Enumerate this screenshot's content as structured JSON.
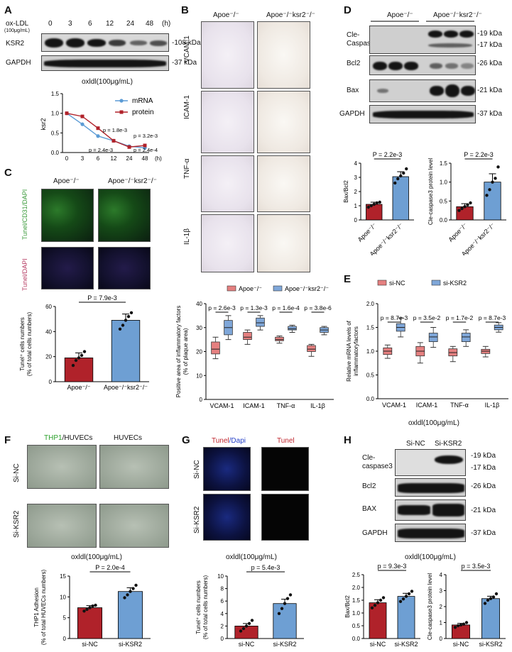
{
  "panels": {
    "A": {
      "label": "A",
      "row_label": "ox-LDL",
      "row_unit": "(100μg/mL)",
      "timepoints": [
        "0",
        "3",
        "6",
        "12",
        "24",
        "48"
      ],
      "time_unit": "(h)",
      "blots": [
        "KSR2",
        "GAPDH"
      ],
      "kda": [
        "-108 kDa",
        "-37 kDa"
      ],
      "chart_title": "oxldl(100μg/mL)"
    },
    "B": {
      "label": "B",
      "groups": [
        "Apoe⁻/⁻",
        "Apoe⁻/⁻ksr2⁻/⁻"
      ],
      "markers": [
        "VCAM-1",
        "ICAM-1",
        "TNF-α",
        "IL-1β"
      ]
    },
    "C": {
      "label": "C",
      "groups": [
        "Apoe⁻/⁻",
        "Apoe⁻/⁻ksr2⁻/⁻"
      ],
      "row1": "Tunel/CD31/DAPI",
      "row2": "Tunel/DAPI"
    },
    "D": {
      "label": "D",
      "groups": [
        "Apoe⁻/⁻",
        "Apoe⁻/⁻ksr2⁻/⁻"
      ],
      "blots": [
        "Cle-\nCaspase3",
        "Bcl2",
        "Bax",
        "GAPDH"
      ],
      "kda": [
        "-19 kDa",
        "-17 kDa",
        "-26 kDa",
        "-21 kDa",
        "-37 kDa"
      ]
    },
    "E": {
      "label": "E",
      "footer": "oxldl(100μg/mL)"
    },
    "F": {
      "label": "F",
      "cols": [
        "THP1/HUVECs",
        "HUVECs"
      ],
      "col1_green": "THP1",
      "col1_rest": "/HUVECs",
      "rows": [
        "Si-NC",
        "Si-KSR2"
      ],
      "footer": "oxldl(100μg/mL)"
    },
    "G": {
      "label": "G",
      "cols_red": "Tunel",
      "cols_blue": "/Dapi",
      "col2": "Tunel",
      "rows": [
        "Si-NC",
        "Si-KSR2"
      ],
      "footer": "oxldl(100μg/mL)"
    },
    "H": {
      "label": "H",
      "cols": [
        "Si-NC",
        "Si-KSR2"
      ],
      "blots": [
        "Cle-\ncaspase3",
        "Bcl2",
        "BAX",
        "GAPDH"
      ],
      "kda": [
        "-19 kDa",
        "-17 kDa",
        "-26 kDa",
        "-21 kDa",
        "-37 kDa"
      ],
      "footer": "oxldl(100μg/mL)"
    }
  },
  "colors": {
    "red": "#b0222a",
    "blue": "#6e9fd3",
    "boxRed": "#e58080",
    "boxBlue": "#7fa7d9",
    "lineBlue": "#5b9bd5"
  },
  "chart_data": [
    {
      "id": "A-line",
      "type": "line",
      "x": [
        "0",
        "3",
        "6",
        "12",
        "24",
        "48"
      ],
      "xunit": "(h)",
      "ylabel": "ksr2",
      "ylim": [
        0.0,
        1.5
      ],
      "yticks": [
        "0.0",
        "0.5",
        "1.0",
        "1.5"
      ],
      "legend": "top-right",
      "series": [
        {
          "name": "mRNA",
          "values": [
            1.0,
            0.72,
            0.42,
            0.3,
            0.16,
            0.12
          ]
        },
        {
          "name": "protein",
          "values": [
            1.0,
            0.92,
            0.62,
            0.3,
            0.14,
            0.18
          ]
        }
      ],
      "annotations": [
        "p = 1.8e-3",
        "p = 3.2e-3",
        "p = 2.4e-3",
        "p = 2.4e-4"
      ]
    },
    {
      "id": "C-bar",
      "type": "bar",
      "categories": [
        "Apoe⁻/⁻",
        "Apoe⁻/⁻ksr2⁻/⁻"
      ],
      "values": [
        19,
        49
      ],
      "errors": [
        4,
        5
      ],
      "points": [
        [
          13,
          17,
          19,
          21,
          24
        ],
        [
          42,
          45,
          49,
          52,
          55
        ]
      ],
      "ylabel": "Tunel⁺ cells numbers\n(% of total cells numbers)",
      "ylim": [
        0,
        60
      ],
      "yticks": [
        "0",
        "20",
        "40",
        "60"
      ],
      "annotation": "P = 7.9e-3"
    },
    {
      "id": "D-bar1",
      "type": "bar",
      "categories": [
        "Apoe⁻/⁻",
        "Apoe⁻/⁻ksr2⁻/⁻"
      ],
      "values": [
        1.1,
        3.05
      ],
      "errors": [
        0.15,
        0.35
      ],
      "points": [
        [
          0.9,
          1.0,
          1.1,
          1.2,
          1.25
        ],
        [
          2.6,
          2.9,
          3.1,
          3.3,
          3.6
        ]
      ],
      "ylabel": "Bax/Bcl2",
      "ylim": [
        0,
        4
      ],
      "yticks": [
        "0",
        "1",
        "2",
        "3",
        "4"
      ],
      "annotation": "P = 2.2e-3"
    },
    {
      "id": "D-bar2",
      "type": "bar",
      "categories": [
        "Apoe⁻/⁻",
        "Apoe⁻/⁻ksr2⁻/⁻"
      ],
      "values": [
        0.35,
        1.0
      ],
      "errors": [
        0.08,
        0.22
      ],
      "points": [
        [
          0.25,
          0.3,
          0.35,
          0.4,
          0.45
        ],
        [
          0.65,
          0.8,
          1.0,
          1.1,
          1.4
        ]
      ],
      "ylabel": "Cle-caspase3 protein level",
      "ylim": [
        0,
        1.5
      ],
      "yticks": [
        "0.0",
        "0.5",
        "1.0",
        "1.5"
      ],
      "annotation": "P = 2.2e-3"
    },
    {
      "id": "B-box",
      "type": "box",
      "categories": [
        "VCAM-1",
        "ICAM-1",
        "TNF-α",
        "IL-1β"
      ],
      "ylabel": "Positive area of inflammatory factors\n(% of plaque area)",
      "ylim": [
        0,
        40
      ],
      "yticks": [
        "0",
        "10",
        "20",
        "30",
        "40"
      ],
      "legend": "top",
      "series": [
        {
          "name": "Apoe⁻/⁻",
          "boxes": [
            [
              17,
              19,
              21,
              24,
              26
            ],
            [
              23,
              25,
              26,
              28,
              29
            ],
            [
              23.5,
              24.5,
              25,
              26,
              26.5
            ],
            [
              18,
              20,
              21,
              22.5,
              23
            ]
          ]
        },
        {
          "name": "Apoe⁻/⁻ksr2⁻/⁻",
          "boxes": [
            [
              25,
              27,
              30,
              33,
              35
            ],
            [
              29,
              30.5,
              32,
              34,
              35
            ],
            [
              28,
              29,
              29.5,
              30.5,
              31
            ],
            [
              27,
              28,
              29,
              30,
              30.5
            ]
          ]
        }
      ],
      "annotations": [
        "p = 2.6e-3",
        "p = 1.3e-3",
        "p = 1.6e-4",
        "p = 3.8e-6"
      ]
    },
    {
      "id": "E-box",
      "type": "box",
      "categories": [
        "VCAM-1",
        "ICAM-1",
        "TNF-α",
        "IL-1β"
      ],
      "ylabel": "Relative mRNA levels of\ninflammatoryfactors",
      "ylim": [
        0.0,
        2.0
      ],
      "yticks": [
        "0.0",
        "0.5",
        "1.0",
        "1.5",
        "2.0"
      ],
      "legend": "top",
      "series": [
        {
          "name": "si-NC",
          "boxes": [
            [
              0.85,
              0.93,
              1.0,
              1.07,
              1.13
            ],
            [
              0.75,
              0.9,
              1.0,
              1.1,
              1.18
            ],
            [
              0.78,
              0.9,
              0.97,
              1.05,
              1.1
            ],
            [
              0.88,
              0.95,
              1.0,
              1.04,
              1.1
            ]
          ]
        },
        {
          "name": "si-KSR2",
          "boxes": [
            [
              1.3,
              1.42,
              1.5,
              1.58,
              1.7
            ],
            [
              1.08,
              1.2,
              1.3,
              1.38,
              1.5
            ],
            [
              1.1,
              1.2,
              1.3,
              1.38,
              1.45
            ],
            [
              1.4,
              1.45,
              1.5,
              1.55,
              1.6
            ]
          ]
        }
      ],
      "annotations": [
        "p = 8.7e-3",
        "p = 3.5e-2",
        "p = 1.7e-2",
        "p = 8.7e-3"
      ]
    },
    {
      "id": "F-bar",
      "type": "bar",
      "categories": [
        "si-NC",
        "si-KSR2"
      ],
      "values": [
        7.4,
        11.3
      ],
      "errors": [
        0.5,
        0.9
      ],
      "points": [
        [
          6.6,
          7.0,
          7.4,
          7.8,
          8.0
        ],
        [
          9.8,
          10.5,
          11.3,
          12.0,
          12.8
        ]
      ],
      "ylabel": "THP1 Adhesion\n(% of total HUVECs numbers)",
      "ylim": [
        0,
        15
      ],
      "yticks": [
        "0",
        "5",
        "10",
        "15"
      ],
      "annotation": "P = 2.0e-4"
    },
    {
      "id": "G-bar",
      "type": "bar",
      "categories": [
        "si-NC",
        "si-KSR2"
      ],
      "values": [
        2.0,
        5.6
      ],
      "errors": [
        0.4,
        0.7
      ],
      "points": [
        [
          1.2,
          1.6,
          2.0,
          2.4,
          2.9
        ],
        [
          4.0,
          4.8,
          5.6,
          6.4,
          7.0
        ]
      ],
      "ylabel": "Tunel⁺ cells numbers\n(% of total cells numbers)",
      "ylim": [
        0,
        10
      ],
      "yticks": [
        "0",
        "2",
        "4",
        "6",
        "8",
        "10"
      ],
      "annotation": "p = 5.4e-3"
    },
    {
      "id": "H-bar1",
      "type": "bar",
      "categories": [
        "si-NC",
        "si-KSR2"
      ],
      "values": [
        1.4,
        1.65
      ],
      "errors": [
        0.12,
        0.12
      ],
      "points": [
        [
          1.2,
          1.3,
          1.4,
          1.5,
          1.6
        ],
        [
          1.45,
          1.55,
          1.65,
          1.75,
          1.85
        ]
      ],
      "ylabel": "Bax/Bcl2",
      "ylim": [
        0.0,
        2.5
      ],
      "yticks": [
        "0.0",
        "0.5",
        "1.0",
        "1.5",
        "2.0",
        "2.5"
      ],
      "annotation": "p = 9.3e-3"
    },
    {
      "id": "H-bar2",
      "type": "bar",
      "categories": [
        "si-NC",
        "si-KSR2"
      ],
      "values": [
        0.85,
        2.5
      ],
      "errors": [
        0.1,
        0.15
      ],
      "points": [
        [
          0.7,
          0.8,
          0.85,
          0.9,
          1.0
        ],
        [
          2.2,
          2.4,
          2.5,
          2.6,
          2.8
        ]
      ],
      "ylabel": "Cle-caspase3 protein level",
      "ylim": [
        0,
        4
      ],
      "yticks": [
        "0",
        "1",
        "2",
        "3",
        "4"
      ],
      "annotation": "p = 3.5e-3"
    }
  ]
}
